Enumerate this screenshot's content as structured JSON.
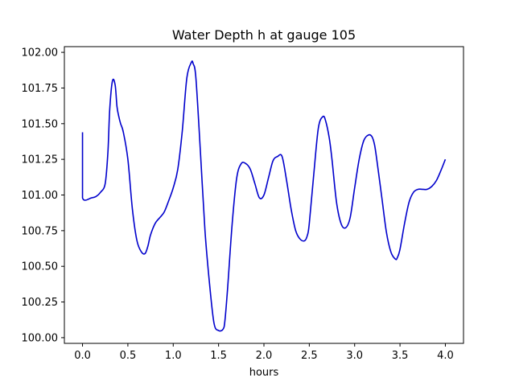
{
  "chart_data": {
    "type": "line",
    "title": "Water Depth h at gauge 105",
    "xlabel": "hours",
    "ylabel": "",
    "xlim": [
      -0.2,
      4.2
    ],
    "ylim": [
      99.96,
      102.04
    ],
    "xticks": [
      0.0,
      0.5,
      1.0,
      1.5,
      2.0,
      2.5,
      3.0,
      3.5,
      4.0
    ],
    "xtick_labels": [
      "0.0",
      "0.5",
      "1.0",
      "1.5",
      "2.0",
      "2.5",
      "3.0",
      "3.5",
      "4.0"
    ],
    "yticks": [
      100.0,
      100.25,
      100.5,
      100.75,
      101.0,
      101.25,
      101.5,
      101.75,
      102.0
    ],
    "ytick_labels": [
      "100.00",
      "100.25",
      "100.50",
      "100.75",
      "101.00",
      "101.25",
      "101.50",
      "101.75",
      "102.00"
    ],
    "grid": false,
    "color": "#0000cc",
    "series": [
      {
        "x": [
          0.0,
          0.0,
          0.0,
          0.1,
          0.15,
          0.2,
          0.25,
          0.28,
          0.3,
          0.33,
          0.36,
          0.38,
          0.4,
          0.42,
          0.45,
          0.5,
          0.55,
          0.6,
          0.65,
          0.69,
          0.72,
          0.75,
          0.8,
          0.85,
          0.9,
          0.95,
          1.0,
          1.05,
          1.1,
          1.15,
          1.2,
          1.22,
          1.25,
          1.3,
          1.35,
          1.4,
          1.45,
          1.5,
          1.55,
          1.57,
          1.6,
          1.65,
          1.7,
          1.75,
          1.8,
          1.85,
          1.9,
          1.95,
          2.0,
          2.05,
          2.1,
          2.15,
          2.2,
          2.25,
          2.3,
          2.35,
          2.4,
          2.45,
          2.48,
          2.5,
          2.55,
          2.6,
          2.65,
          2.68,
          2.72,
          2.75,
          2.8,
          2.85,
          2.9,
          2.95,
          3.0,
          3.05,
          3.1,
          3.15,
          3.19,
          3.22,
          3.25,
          3.3,
          3.35,
          3.4,
          3.45,
          3.47,
          3.5,
          3.55,
          3.6,
          3.65,
          3.7,
          3.75,
          3.8,
          3.85,
          3.9,
          3.95,
          4.0
        ],
        "y": [
          101.44,
          101.2,
          100.98,
          100.98,
          100.99,
          101.02,
          101.08,
          101.3,
          101.6,
          101.8,
          101.77,
          101.62,
          101.55,
          101.5,
          101.44,
          101.25,
          100.9,
          100.68,
          100.6,
          100.59,
          100.64,
          100.72,
          100.8,
          100.84,
          100.88,
          100.96,
          101.05,
          101.18,
          101.45,
          101.82,
          101.93,
          101.92,
          101.82,
          101.3,
          100.75,
          100.38,
          100.1,
          100.05,
          100.06,
          100.12,
          100.35,
          100.8,
          101.12,
          101.22,
          101.22,
          101.18,
          101.08,
          100.98,
          101.0,
          101.12,
          101.24,
          101.27,
          101.27,
          101.1,
          100.9,
          100.75,
          100.69,
          100.68,
          100.72,
          100.8,
          101.15,
          101.47,
          101.55,
          101.52,
          101.4,
          101.25,
          100.95,
          100.8,
          100.77,
          100.84,
          101.05,
          101.25,
          101.38,
          101.42,
          101.41,
          101.35,
          101.22,
          100.98,
          100.74,
          100.6,
          100.55,
          100.56,
          100.62,
          100.8,
          100.95,
          101.02,
          101.04,
          101.04,
          101.04,
          101.06,
          101.1,
          101.17,
          101.25
        ]
      }
    ]
  }
}
